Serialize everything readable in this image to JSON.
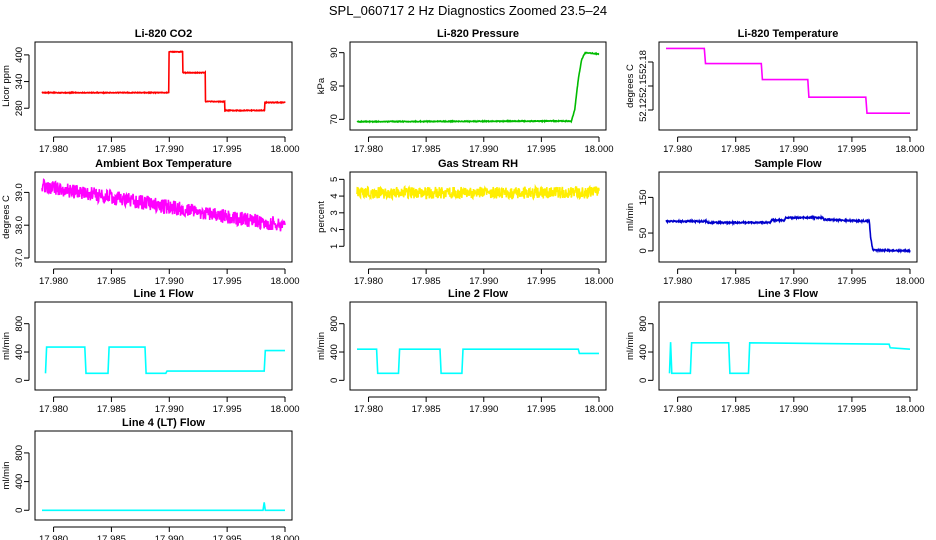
{
  "figure": {
    "title": "SPL_060717  2 Hz Diagnostics Zoomed 23.5–24"
  },
  "chart_data": [
    {
      "type": "line",
      "title": "Li-820 CO2",
      "ylabel": "Licor ppm",
      "color": "#ff0000",
      "xlim": [
        17.979,
        18.0
      ],
      "xticks": [
        17.98,
        17.985,
        17.99,
        17.995,
        18.0
      ],
      "xtick_labels": [
        "17.980",
        "17.985",
        "17.990",
        "17.995",
        "18.000"
      ],
      "ylim": [
        240,
        420
      ],
      "yticks": [
        280,
        340,
        400
      ],
      "ytick_labels": [
        "280",
        "340",
        "400"
      ],
      "noise": 0.8,
      "series": [
        {
          "x": [
            17.979,
            17.98995,
            17.98996,
            17.99115,
            17.99116,
            17.9931,
            17.99311,
            17.9948,
            17.99481,
            17.99825,
            17.99826,
            18.0
          ],
          "y": [
            315,
            315,
            407,
            407,
            360,
            360,
            295,
            295,
            275,
            275,
            293,
            293
          ]
        }
      ]
    },
    {
      "type": "line",
      "title": "Li-820 Pressure",
      "ylabel": "kPa",
      "color": "#00bb00",
      "xlim": [
        17.979,
        18.0
      ],
      "xticks": [
        17.98,
        17.985,
        17.99,
        17.995,
        18.0
      ],
      "xtick_labels": [
        "17.980",
        "17.985",
        "17.990",
        "17.995",
        "18.000"
      ],
      "ylim": [
        68,
        92
      ],
      "yticks": [
        70,
        80,
        90
      ],
      "ytick_labels": [
        "70",
        "80",
        "90"
      ],
      "noise": 0.12,
      "series": [
        {
          "x": [
            17.979,
            17.997,
            17.9976,
            17.9979,
            17.9982,
            17.9985,
            17.9988,
            18.0
          ],
          "y": [
            69.3,
            69.5,
            69.4,
            73,
            82,
            88,
            90,
            89.6
          ]
        }
      ]
    },
    {
      "type": "line",
      "title": "Li-820 Temperature",
      "ylabel": "degrees C",
      "color": "#ff00ff",
      "xlim": [
        17.979,
        18.0
      ],
      "xticks": [
        17.98,
        17.985,
        17.99,
        17.995,
        18.0
      ],
      "xtick_labels": [
        "17.980",
        "17.985",
        "17.990",
        "17.995",
        "18.000"
      ],
      "ylim": [
        52.1,
        52.2
      ],
      "yticks": [
        52.12,
        52.15,
        52.18
      ],
      "ytick_labels": [
        "52.12",
        "52.15",
        "52.18"
      ],
      "noise": 0,
      "series": [
        {
          "x": [
            17.979,
            17.9823,
            17.9824,
            17.9872,
            17.9873,
            17.9912,
            17.9913,
            17.9962,
            17.9963,
            18.0
          ],
          "y": [
            52.197,
            52.197,
            52.178,
            52.178,
            52.158,
            52.158,
            52.136,
            52.136,
            52.116,
            52.116
          ]
        }
      ]
    },
    {
      "type": "line",
      "title": "Ambient Box Temperature",
      "ylabel": "degrees C",
      "color": "#ff00ff",
      "xlim": [
        17.979,
        18.0
      ],
      "xticks": [
        17.98,
        17.985,
        17.99,
        17.995,
        18.0
      ],
      "xtick_labels": [
        "17.980",
        "17.985",
        "17.990",
        "17.995",
        "18.000"
      ],
      "ylim": [
        37.0,
        39.5
      ],
      "yticks": [
        37.0,
        38.0,
        39.0
      ],
      "ytick_labels": [
        "37.0",
        "38.0",
        "39.0"
      ],
      "noise": 0.22,
      "series": [
        {
          "x": [
            17.979,
            17.985,
            17.99,
            17.995,
            18.0
          ],
          "y": [
            39.2,
            38.85,
            38.55,
            38.25,
            38.0
          ]
        }
      ]
    },
    {
      "type": "line",
      "title": "Gas Stream RH",
      "ylabel": "percent",
      "color": "#ffee00",
      "xlim": [
        17.979,
        18.0
      ],
      "xticks": [
        17.98,
        17.985,
        17.99,
        17.995,
        18.0
      ],
      "xtick_labels": [
        "17.980",
        "17.985",
        "17.990",
        "17.995",
        "18.000"
      ],
      "ylim": [
        0.3,
        5.2
      ],
      "yticks": [
        1,
        2,
        3,
        4,
        5
      ],
      "ytick_labels": [
        "1",
        "2",
        "3",
        "4",
        "5"
      ],
      "noise": 0.35,
      "series": [
        {
          "x": [
            17.979,
            18.0
          ],
          "y": [
            4.2,
            4.2
          ]
        }
      ]
    },
    {
      "type": "line",
      "title": "Sample Flow",
      "ylabel": "ml/min",
      "color": "#0000cc",
      "xlim": [
        17.979,
        18.0
      ],
      "xticks": [
        17.98,
        17.985,
        17.99,
        17.995,
        18.0
      ],
      "xtick_labels": [
        "17.980",
        "17.985",
        "17.990",
        "17.995",
        "18.000"
      ],
      "ylim": [
        -20,
        210
      ],
      "yticks": [
        0,
        50,
        150
      ],
      "ytick_labels": [
        "0",
        "50",
        "150"
      ],
      "noise": 2,
      "series": [
        {
          "x": [
            17.979,
            17.9825,
            17.9826,
            17.988,
            17.9881,
            17.9892,
            17.9893,
            17.9925,
            17.9926,
            17.9965,
            17.9966,
            17.9968,
            18.0
          ],
          "y": [
            83,
            83,
            79,
            80,
            86,
            86,
            93,
            93,
            88,
            83,
            40,
            2,
            0
          ]
        }
      ]
    },
    {
      "type": "line",
      "title": "Line 1 Flow",
      "ylabel": "ml/min",
      "color": "#00ffff",
      "xlim": [
        17.979,
        18.0
      ],
      "xticks": [
        17.98,
        17.985,
        17.99,
        17.995,
        18.0
      ],
      "xtick_labels": [
        "17.980",
        "17.985",
        "17.990",
        "17.995",
        "18.000"
      ],
      "ylim": [
        -80,
        1050
      ],
      "yticks": [
        0,
        400,
        800
      ],
      "ytick_labels": [
        "0",
        "400",
        "800"
      ],
      "noise": 0,
      "series": [
        {
          "x": [
            17.9793,
            17.9794,
            17.9827,
            17.9828,
            17.9847,
            17.9848,
            17.9879,
            17.988,
            17.9897,
            17.9898,
            17.9982,
            17.9983,
            18.0
          ],
          "y": [
            100,
            470,
            470,
            100,
            100,
            470,
            470,
            100,
            100,
            130,
            130,
            420,
            420
          ]
        }
      ]
    },
    {
      "type": "line",
      "title": "Line 2 Flow",
      "ylabel": "ml/min",
      "color": "#00ffff",
      "xlim": [
        17.979,
        18.0
      ],
      "xticks": [
        17.98,
        17.985,
        17.99,
        17.995,
        18.0
      ],
      "xtick_labels": [
        "17.980",
        "17.985",
        "17.990",
        "17.995",
        "18.000"
      ],
      "ylim": [
        -80,
        1050
      ],
      "yticks": [
        0,
        400,
        800
      ],
      "ytick_labels": [
        "0",
        "400",
        "800"
      ],
      "noise": 0,
      "series": [
        {
          "x": [
            17.979,
            17.9807,
            17.9808,
            17.9826,
            17.9827,
            17.9862,
            17.9863,
            17.9881,
            17.9882,
            17.9982,
            17.9983,
            18.0
          ],
          "y": [
            440,
            440,
            100,
            100,
            440,
            440,
            100,
            100,
            440,
            440,
            380,
            380
          ]
        }
      ]
    },
    {
      "type": "line",
      "title": "Line 3 Flow",
      "ylabel": "ml/min",
      "color": "#00ffff",
      "xlim": [
        17.979,
        18.0
      ],
      "xticks": [
        17.98,
        17.985,
        17.99,
        17.995,
        18.0
      ],
      "xtick_labels": [
        "17.980",
        "17.985",
        "17.990",
        "17.995",
        "18.000"
      ],
      "ylim": [
        -80,
        1050
      ],
      "yticks": [
        0,
        400,
        800
      ],
      "ytick_labels": [
        "0",
        "400",
        "800"
      ],
      "noise": 0,
      "series": [
        {
          "x": [
            17.9793,
            17.9794,
            17.9795,
            17.9811,
            17.9812,
            17.9844,
            17.9845,
            17.9861,
            17.9862,
            17.9982,
            17.9983,
            18.0
          ],
          "y": [
            100,
            540,
            100,
            100,
            530,
            530,
            100,
            100,
            530,
            510,
            460,
            440
          ]
        }
      ]
    },
    {
      "type": "line",
      "title": "Line 4 (LT) Flow",
      "ylabel": "ml/min",
      "color": "#00ffff",
      "xlim": [
        17.979,
        18.0
      ],
      "xticks": [
        17.98,
        17.985,
        17.99,
        17.995,
        18.0
      ],
      "xtick_labels": [
        "17.980",
        "17.985",
        "17.990",
        "17.995",
        "18.000"
      ],
      "ylim": [
        -80,
        1050
      ],
      "yticks": [
        0,
        400,
        800
      ],
      "ytick_labels": [
        "0",
        "400",
        "800"
      ],
      "noise": 0,
      "series": [
        {
          "x": [
            17.979,
            17.9981,
            17.9982,
            17.9983,
            17.9984,
            18.0
          ],
          "y": [
            0,
            0,
            110,
            0,
            0,
            0
          ]
        }
      ]
    }
  ]
}
